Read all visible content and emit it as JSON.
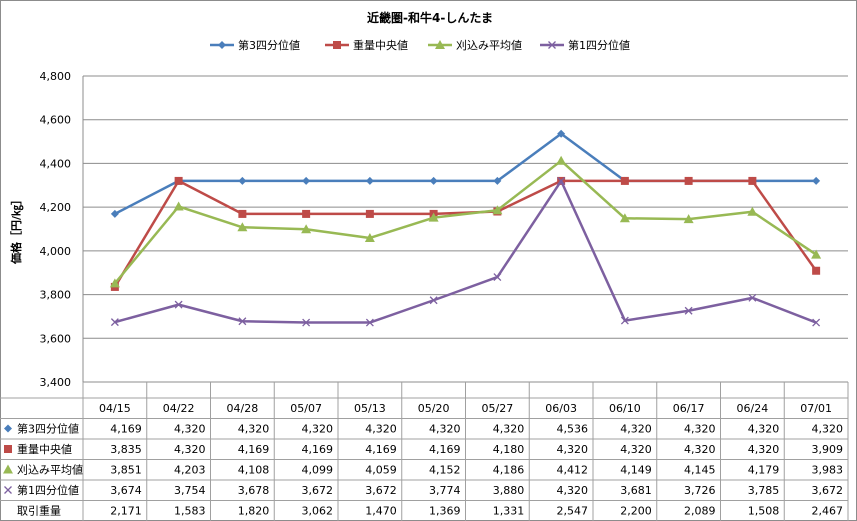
{
  "chart_data": {
    "type": "line",
    "title": "近畿圏-和牛4-しんたま",
    "ylabel": "価格［円/㎏］",
    "ylim": [
      3400,
      4800
    ],
    "yticks": [
      "3,400",
      "3,600",
      "3,800",
      "4,000",
      "4,200",
      "4,400",
      "4,600",
      "4,800"
    ],
    "ytick_values": [
      3400,
      3600,
      3800,
      4000,
      4200,
      4400,
      4600,
      4800
    ],
    "grid": true,
    "legend": "top",
    "categories": [
      "04/15",
      "04/22",
      "04/28",
      "05/07",
      "05/13",
      "05/20",
      "05/27",
      "06/03",
      "06/10",
      "06/17",
      "06/24",
      "07/01"
    ],
    "series": [
      {
        "name": "第3四分位値",
        "color": "#4a7ebb",
        "marker": "diamond",
        "values": [
          4169,
          4320,
          4320,
          4320,
          4320,
          4320,
          4320,
          4536,
          4320,
          4320,
          4320,
          4320
        ],
        "labels": [
          "4,169",
          "4,320",
          "4,320",
          "4,320",
          "4,320",
          "4,320",
          "4,320",
          "4,536",
          "4,320",
          "4,320",
          "4,320",
          "4,320"
        ]
      },
      {
        "name": "重量中央値",
        "color": "#be4b48",
        "marker": "square",
        "values": [
          3835,
          4320,
          4169,
          4169,
          4169,
          4169,
          4180,
          4320,
          4320,
          4320,
          4320,
          3909
        ],
        "labels": [
          "3,835",
          "4,320",
          "4,169",
          "4,169",
          "4,169",
          "4,169",
          "4,180",
          "4,320",
          "4,320",
          "4,320",
          "4,320",
          "3,909"
        ]
      },
      {
        "name": "刈込み平均値",
        "color": "#98b954",
        "marker": "triangle",
        "values": [
          3851,
          4203,
          4108,
          4099,
          4059,
          4152,
          4186,
          4412,
          4149,
          4145,
          4179,
          3983
        ],
        "labels": [
          "3,851",
          "4,203",
          "4,108",
          "4,099",
          "4,059",
          "4,152",
          "4,186",
          "4,412",
          "4,149",
          "4,145",
          "4,179",
          "3,983"
        ]
      },
      {
        "name": "第1四分位値",
        "color": "#7d60a0",
        "marker": "x",
        "values": [
          3674,
          3754,
          3678,
          3672,
          3672,
          3774,
          3880,
          4320,
          3681,
          3726,
          3785,
          3672
        ],
        "labels": [
          "3,674",
          "3,754",
          "3,678",
          "3,672",
          "3,672",
          "3,774",
          "3,880",
          "4,320",
          "3,681",
          "3,726",
          "3,785",
          "3,672"
        ]
      }
    ],
    "table_extra_row": {
      "name": "取引重量",
      "labels": [
        "2,171",
        "1,583",
        "1,820",
        "3,062",
        "1,470",
        "1,369",
        "1,331",
        "2,547",
        "2,200",
        "2,089",
        "1,508",
        "2,467"
      ]
    }
  }
}
